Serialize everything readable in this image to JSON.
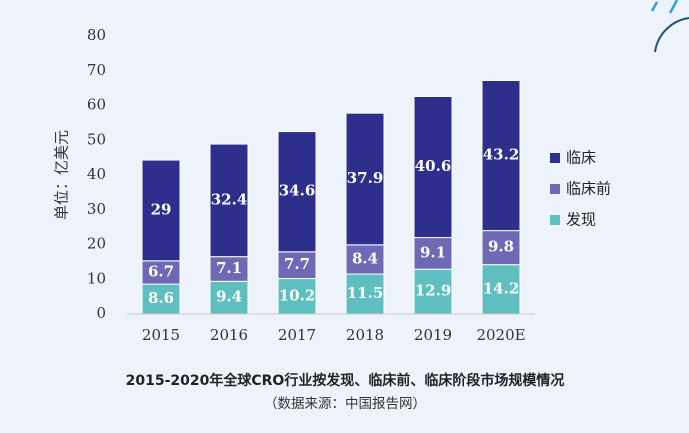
{
  "chart_data": {
    "type": "bar",
    "stacked": true,
    "title": "2015-2020年全球CRO行业按发现、临床前、临床阶段市场规模情况",
    "subtitle": "（数据来源：中国报告网）",
    "ylabel": "单位：亿美元",
    "xlabel": "",
    "ylim": [
      0,
      80
    ],
    "yticks": [
      0,
      10,
      20,
      30,
      40,
      50,
      60,
      70,
      80
    ],
    "categories": [
      "2015",
      "2016",
      "2017",
      "2018",
      "2019",
      "2020E"
    ],
    "series": [
      {
        "name": "发现",
        "color": "#5fbfc0",
        "values": [
          8.6,
          9.4,
          10.2,
          11.5,
          12.9,
          14.2
        ]
      },
      {
        "name": "临床前",
        "color": "#6f69b5",
        "values": [
          6.7,
          7.1,
          7.7,
          8.4,
          9.1,
          9.8
        ]
      },
      {
        "name": "临床",
        "color": "#2e2f8c",
        "values": [
          29,
          32.4,
          34.6,
          37.9,
          40.6,
          43.2
        ]
      }
    ],
    "legend_order": [
      "临床",
      "临床前",
      "发现"
    ],
    "legend_position": "right",
    "grid": false
  }
}
